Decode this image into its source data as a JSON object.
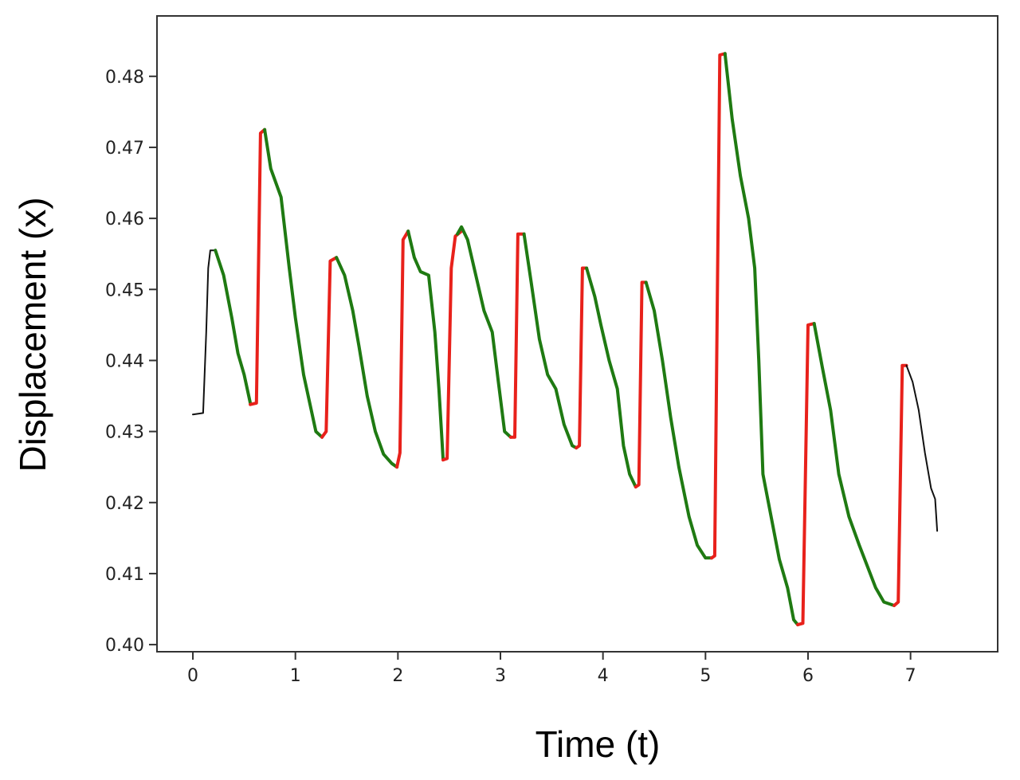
{
  "chart_data": {
    "type": "line",
    "title": "",
    "xlabel": "Time (t)",
    "ylabel": "Displacement (x)",
    "xlim": [
      -0.35,
      7.85
    ],
    "ylim": [
      0.399,
      0.4885
    ],
    "xticks": [
      0,
      1,
      2,
      3,
      4,
      5,
      6,
      7
    ],
    "yticks": [
      0.4,
      0.41,
      0.42,
      0.43,
      0.44,
      0.45,
      0.46,
      0.47,
      0.48
    ],
    "ytick_labels": [
      "0.40",
      "0.41",
      "0.42",
      "0.43",
      "0.44",
      "0.45",
      "0.46",
      "0.47",
      "0.48"
    ],
    "grid": false,
    "legend": "none",
    "colors": {
      "rise": "#e8211b",
      "decay": "#1f7a12",
      "edge": "#111111"
    },
    "segments": [
      {
        "role": "edge",
        "points": [
          [
            0.0,
            0.4324
          ],
          [
            0.1,
            0.4326
          ],
          [
            0.13,
            0.444
          ],
          [
            0.15,
            0.453
          ],
          [
            0.17,
            0.4555
          ],
          [
            0.22,
            0.4555
          ]
        ]
      },
      {
        "role": "decay",
        "points": [
          [
            0.22,
            0.4555
          ],
          [
            0.3,
            0.452
          ],
          [
            0.38,
            0.446
          ],
          [
            0.44,
            0.441
          ],
          [
            0.5,
            0.438
          ],
          [
            0.56,
            0.434
          ]
        ]
      },
      {
        "role": "rise",
        "points": [
          [
            0.56,
            0.4338
          ],
          [
            0.62,
            0.434
          ],
          [
            0.66,
            0.472
          ],
          [
            0.7,
            0.4725
          ]
        ]
      },
      {
        "role": "decay",
        "points": [
          [
            0.7,
            0.4725
          ],
          [
            0.76,
            0.467
          ],
          [
            0.86,
            0.463
          ],
          [
            0.94,
            0.453
          ],
          [
            1.0,
            0.446
          ],
          [
            1.08,
            0.438
          ],
          [
            1.14,
            0.434
          ],
          [
            1.2,
            0.43
          ],
          [
            1.26,
            0.4292
          ]
        ]
      },
      {
        "role": "rise",
        "points": [
          [
            1.26,
            0.4292
          ],
          [
            1.3,
            0.43
          ],
          [
            1.34,
            0.454
          ],
          [
            1.4,
            0.4545
          ]
        ]
      },
      {
        "role": "decay",
        "points": [
          [
            1.4,
            0.4545
          ],
          [
            1.48,
            0.452
          ],
          [
            1.56,
            0.447
          ],
          [
            1.62,
            0.442
          ],
          [
            1.7,
            0.435
          ],
          [
            1.78,
            0.43
          ],
          [
            1.86,
            0.4268
          ],
          [
            1.94,
            0.4255
          ],
          [
            1.99,
            0.425
          ]
        ]
      },
      {
        "role": "rise",
        "points": [
          [
            1.99,
            0.425
          ],
          [
            2.02,
            0.427
          ],
          [
            2.05,
            0.457
          ],
          [
            2.1,
            0.4582
          ]
        ]
      },
      {
        "role": "decay",
        "points": [
          [
            2.1,
            0.4582
          ],
          [
            2.16,
            0.4545
          ],
          [
            2.22,
            0.4525
          ],
          [
            2.3,
            0.452
          ],
          [
            2.36,
            0.444
          ],
          [
            2.4,
            0.436
          ],
          [
            2.44,
            0.4262
          ]
        ]
      },
      {
        "role": "rise",
        "points": [
          [
            2.44,
            0.426
          ],
          [
            2.48,
            0.4262
          ],
          [
            2.52,
            0.453
          ],
          [
            2.56,
            0.4575
          ],
          [
            2.62,
            0.4582
          ]
        ]
      },
      {
        "role": "decay",
        "points": [
          [
            2.58,
            0.4578
          ],
          [
            2.62,
            0.4588
          ],
          [
            2.68,
            0.457
          ],
          [
            2.76,
            0.452
          ],
          [
            2.84,
            0.447
          ],
          [
            2.92,
            0.444
          ],
          [
            2.98,
            0.437
          ],
          [
            3.04,
            0.43
          ],
          [
            3.1,
            0.4292
          ]
        ]
      },
      {
        "role": "rise",
        "points": [
          [
            3.1,
            0.4292
          ],
          [
            3.14,
            0.4292
          ],
          [
            3.17,
            0.4578
          ],
          [
            3.23,
            0.4578
          ]
        ]
      },
      {
        "role": "decay",
        "points": [
          [
            3.23,
            0.4578
          ],
          [
            3.3,
            0.451
          ],
          [
            3.38,
            0.443
          ],
          [
            3.46,
            0.438
          ],
          [
            3.54,
            0.436
          ],
          [
            3.62,
            0.431
          ],
          [
            3.7,
            0.428
          ],
          [
            3.74,
            0.4277
          ]
        ]
      },
      {
        "role": "rise",
        "points": [
          [
            3.74,
            0.4277
          ],
          [
            3.77,
            0.428
          ],
          [
            3.8,
            0.453
          ],
          [
            3.84,
            0.453
          ]
        ]
      },
      {
        "role": "decay",
        "points": [
          [
            3.84,
            0.453
          ],
          [
            3.92,
            0.449
          ],
          [
            3.98,
            0.445
          ],
          [
            4.06,
            0.44
          ],
          [
            4.14,
            0.436
          ],
          [
            4.2,
            0.428
          ],
          [
            4.26,
            0.424
          ],
          [
            4.32,
            0.4222
          ]
        ]
      },
      {
        "role": "rise",
        "points": [
          [
            4.32,
            0.4222
          ],
          [
            4.35,
            0.4225
          ],
          [
            4.38,
            0.451
          ],
          [
            4.42,
            0.451
          ]
        ]
      },
      {
        "role": "decay",
        "points": [
          [
            4.42,
            0.451
          ],
          [
            4.5,
            0.447
          ],
          [
            4.58,
            0.44
          ],
          [
            4.66,
            0.432
          ],
          [
            4.74,
            0.425
          ],
          [
            4.84,
            0.418
          ],
          [
            4.92,
            0.414
          ],
          [
            5.0,
            0.4122
          ],
          [
            5.06,
            0.4122
          ]
        ]
      },
      {
        "role": "rise",
        "points": [
          [
            5.06,
            0.4122
          ],
          [
            5.09,
            0.4125
          ],
          [
            5.14,
            0.483
          ],
          [
            5.19,
            0.4832
          ]
        ]
      },
      {
        "role": "decay",
        "points": [
          [
            5.19,
            0.4832
          ],
          [
            5.26,
            0.474
          ],
          [
            5.34,
            0.466
          ],
          [
            5.42,
            0.46
          ],
          [
            5.48,
            0.453
          ],
          [
            5.52,
            0.44
          ],
          [
            5.56,
            0.424
          ],
          [
            5.64,
            0.418
          ],
          [
            5.72,
            0.412
          ],
          [
            5.8,
            0.408
          ],
          [
            5.86,
            0.4035
          ],
          [
            5.9,
            0.4028
          ]
        ]
      },
      {
        "role": "rise",
        "points": [
          [
            5.9,
            0.4028
          ],
          [
            5.95,
            0.403
          ],
          [
            6.0,
            0.445
          ],
          [
            6.06,
            0.4452
          ]
        ]
      },
      {
        "role": "decay",
        "points": [
          [
            6.06,
            0.4452
          ],
          [
            6.14,
            0.439
          ],
          [
            6.22,
            0.433
          ],
          [
            6.3,
            0.424
          ],
          [
            6.4,
            0.418
          ],
          [
            6.5,
            0.414
          ],
          [
            6.58,
            0.411
          ],
          [
            6.66,
            0.408
          ],
          [
            6.74,
            0.406
          ],
          [
            6.84,
            0.4055
          ]
        ]
      },
      {
        "role": "rise",
        "points": [
          [
            6.84,
            0.4055
          ],
          [
            6.88,
            0.406
          ],
          [
            6.92,
            0.4393
          ],
          [
            6.96,
            0.4393
          ]
        ]
      },
      {
        "role": "edge",
        "points": [
          [
            6.96,
            0.4393
          ],
          [
            7.02,
            0.437
          ],
          [
            7.08,
            0.433
          ],
          [
            7.14,
            0.427
          ],
          [
            7.2,
            0.422
          ],
          [
            7.24,
            0.4205
          ],
          [
            7.26,
            0.416
          ]
        ]
      }
    ]
  }
}
